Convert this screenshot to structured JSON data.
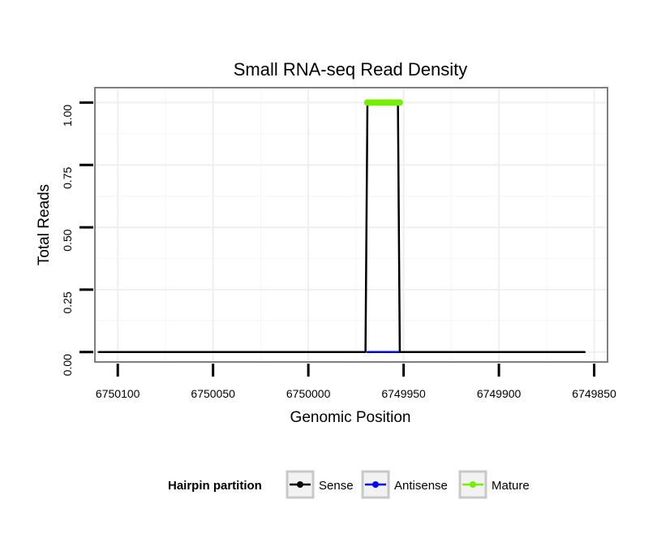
{
  "chart_data": {
    "type": "line",
    "title": "Small RNA-seq Read Density",
    "xlabel": "Genomic Position",
    "ylabel": "Total Reads",
    "xlim": [
      6750112,
      6749843
    ],
    "ylim": [
      -0.04,
      1.06
    ],
    "x_reversed": true,
    "grid": true,
    "x_ticks": [
      6750100,
      6750050,
      6750000,
      6749950,
      6749900,
      6749850
    ],
    "x_tick_labels": [
      "6750100",
      "6750050",
      "6750000",
      "6749950",
      "6749900",
      "6749850"
    ],
    "y_ticks": [
      0,
      0.25,
      0.5,
      0.75,
      1.0
    ],
    "y_tick_labels": [
      "0.00",
      "0.25",
      "0.50",
      "0.75",
      "1.00"
    ],
    "series": [
      {
        "name": "Sense",
        "color": "#000000",
        "x": [
          6750110,
          6749970,
          6749969,
          6749953,
          6749952,
          6749855
        ],
        "y": [
          0,
          0,
          1,
          1,
          0,
          0
        ]
      },
      {
        "name": "Antisense",
        "color": "#0000ff",
        "x": [
          6749969,
          6749952
        ],
        "y": [
          0,
          0
        ]
      },
      {
        "name": "Mature",
        "color": "#76ee00",
        "x": [
          6749969,
          6749952
        ],
        "y": [
          1,
          1
        ]
      }
    ],
    "legend": {
      "position": "bottom",
      "title": "Hairpin partition",
      "entries": [
        "Sense",
        "Antisense",
        "Mature"
      ]
    }
  }
}
